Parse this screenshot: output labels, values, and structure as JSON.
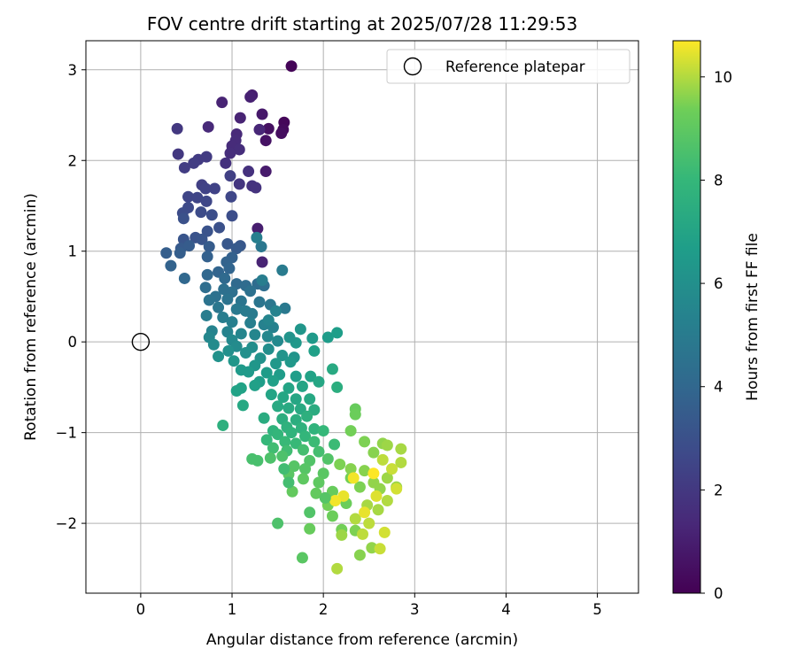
{
  "chart_data": {
    "type": "scatter",
    "title": "FOV centre drift starting at 2025/07/28 11:29:53",
    "xlabel": "Angular distance from reference (arcmin)",
    "ylabel": "Rotation from reference (arcmin)",
    "xlim": [
      -0.6,
      5.45
    ],
    "ylim": [
      -2.77,
      3.32
    ],
    "xticks": [
      0,
      1,
      2,
      3,
      4,
      5
    ],
    "yticks": [
      -2,
      -1,
      0,
      1,
      2,
      3
    ],
    "grid": true,
    "legend": {
      "placement": "top-right",
      "entries": [
        "Reference platepar"
      ]
    },
    "reference_point": {
      "name": "Reference platepar",
      "x": 0,
      "y": 0
    },
    "colorbar": {
      "label": "Hours from first FF file",
      "colormap": "viridis",
      "range": [
        0,
        10.7
      ],
      "ticks": [
        0,
        2,
        4,
        6,
        8,
        10
      ]
    },
    "points": [
      {
        "x": 1.65,
        "y": 3.04,
        "h": 0.1
      },
      {
        "x": 1.57,
        "y": 2.42,
        "h": 0.2
      },
      {
        "x": 1.56,
        "y": 2.34,
        "h": 0.3
      },
      {
        "x": 1.54,
        "y": 2.3,
        "h": 0.4
      },
      {
        "x": 1.4,
        "y": 2.35,
        "h": 0.5
      },
      {
        "x": 1.37,
        "y": 2.22,
        "h": 0.6
      },
      {
        "x": 1.33,
        "y": 2.51,
        "h": 0.8
      },
      {
        "x": 1.37,
        "y": 1.88,
        "h": 0.9
      },
      {
        "x": 1.22,
        "y": 2.72,
        "h": 1.0
      },
      {
        "x": 1.2,
        "y": 2.7,
        "h": 1.1
      },
      {
        "x": 0.89,
        "y": 2.64,
        "h": 1.2
      },
      {
        "x": 1.09,
        "y": 2.47,
        "h": 1.2
      },
      {
        "x": 1.3,
        "y": 2.34,
        "h": 1.3
      },
      {
        "x": 0.74,
        "y": 2.37,
        "h": 1.4
      },
      {
        "x": 1.05,
        "y": 2.29,
        "h": 1.4
      },
      {
        "x": 1.04,
        "y": 2.22,
        "h": 1.5
      },
      {
        "x": 1.0,
        "y": 2.16,
        "h": 1.5
      },
      {
        "x": 1.08,
        "y": 2.12,
        "h": 1.6
      },
      {
        "x": 0.98,
        "y": 2.08,
        "h": 1.6
      },
      {
        "x": 0.93,
        "y": 1.97,
        "h": 1.7
      },
      {
        "x": 1.18,
        "y": 1.88,
        "h": 1.7
      },
      {
        "x": 1.28,
        "y": 1.25,
        "h": 1.0
      },
      {
        "x": 1.33,
        "y": 0.88,
        "h": 1.2
      },
      {
        "x": 1.22,
        "y": 1.72,
        "h": 1.8
      },
      {
        "x": 1.26,
        "y": 1.7,
        "h": 1.8
      },
      {
        "x": 1.08,
        "y": 1.74,
        "h": 1.9
      },
      {
        "x": 0.4,
        "y": 2.35,
        "h": 2.0
      },
      {
        "x": 0.41,
        "y": 2.07,
        "h": 2.0
      },
      {
        "x": 0.72,
        "y": 2.04,
        "h": 2.1
      },
      {
        "x": 0.63,
        "y": 2.01,
        "h": 2.1
      },
      {
        "x": 0.58,
        "y": 1.97,
        "h": 2.2
      },
      {
        "x": 0.48,
        "y": 1.92,
        "h": 2.2
      },
      {
        "x": 0.98,
        "y": 1.83,
        "h": 2.3
      },
      {
        "x": 0.67,
        "y": 1.73,
        "h": 2.3
      },
      {
        "x": 0.71,
        "y": 1.69,
        "h": 2.4
      },
      {
        "x": 0.81,
        "y": 1.69,
        "h": 2.4
      },
      {
        "x": 0.52,
        "y": 1.6,
        "h": 2.5
      },
      {
        "x": 0.62,
        "y": 1.59,
        "h": 2.5
      },
      {
        "x": 0.99,
        "y": 1.6,
        "h": 2.6
      },
      {
        "x": 0.72,
        "y": 1.55,
        "h": 2.6
      },
      {
        "x": 0.52,
        "y": 1.48,
        "h": 2.7
      },
      {
        "x": 0.46,
        "y": 1.42,
        "h": 2.8
      },
      {
        "x": 0.66,
        "y": 1.43,
        "h": 2.8
      },
      {
        "x": 0.78,
        "y": 1.4,
        "h": 2.9
      },
      {
        "x": 1.0,
        "y": 1.39,
        "h": 2.9
      },
      {
        "x": 0.47,
        "y": 1.36,
        "h": 3.0
      },
      {
        "x": 0.86,
        "y": 1.26,
        "h": 3.0
      },
      {
        "x": 0.73,
        "y": 1.22,
        "h": 3.1
      },
      {
        "x": 0.6,
        "y": 1.15,
        "h": 3.1
      },
      {
        "x": 0.47,
        "y": 1.13,
        "h": 3.2
      },
      {
        "x": 0.67,
        "y": 1.13,
        "h": 3.2
      },
      {
        "x": 0.95,
        "y": 1.08,
        "h": 3.3
      },
      {
        "x": 1.09,
        "y": 1.06,
        "h": 3.3
      },
      {
        "x": 1.05,
        "y": 1.03,
        "h": 3.4
      },
      {
        "x": 0.44,
        "y": 1.03,
        "h": 3.4
      },
      {
        "x": 0.53,
        "y": 1.06,
        "h": 3.5
      },
      {
        "x": 0.75,
        "y": 1.05,
        "h": 3.5
      },
      {
        "x": 0.43,
        "y": 0.98,
        "h": 3.6
      },
      {
        "x": 0.28,
        "y": 0.98,
        "h": 3.6
      },
      {
        "x": 0.73,
        "y": 0.94,
        "h": 3.7
      },
      {
        "x": 1.0,
        "y": 0.93,
        "h": 3.7
      },
      {
        "x": 0.94,
        "y": 0.88,
        "h": 3.8
      },
      {
        "x": 0.33,
        "y": 0.84,
        "h": 3.8
      },
      {
        "x": 0.97,
        "y": 0.81,
        "h": 3.9
      },
      {
        "x": 0.85,
        "y": 0.77,
        "h": 3.9
      },
      {
        "x": 0.73,
        "y": 0.74,
        "h": 4.0
      },
      {
        "x": 0.48,
        "y": 0.7,
        "h": 4.0
      },
      {
        "x": 0.92,
        "y": 0.7,
        "h": 4.1
      },
      {
        "x": 1.05,
        "y": 0.64,
        "h": 4.1
      },
      {
        "x": 1.15,
        "y": 0.62,
        "h": 4.2
      },
      {
        "x": 1.28,
        "y": 0.64,
        "h": 4.2
      },
      {
        "x": 1.35,
        "y": 0.62,
        "h": 4.3
      },
      {
        "x": 0.71,
        "y": 0.6,
        "h": 4.3
      },
      {
        "x": 0.91,
        "y": 0.58,
        "h": 4.4
      },
      {
        "x": 1.0,
        "y": 0.55,
        "h": 4.4
      },
      {
        "x": 1.2,
        "y": 0.56,
        "h": 4.5
      },
      {
        "x": 0.82,
        "y": 0.5,
        "h": 4.5
      },
      {
        "x": 0.75,
        "y": 0.46,
        "h": 4.6
      },
      {
        "x": 0.95,
        "y": 0.47,
        "h": 4.6
      },
      {
        "x": 1.1,
        "y": 0.45,
        "h": 4.7
      },
      {
        "x": 1.3,
        "y": 0.44,
        "h": 4.7
      },
      {
        "x": 1.42,
        "y": 0.41,
        "h": 4.8
      },
      {
        "x": 1.58,
        "y": 0.37,
        "h": 4.9
      },
      {
        "x": 0.85,
        "y": 0.38,
        "h": 4.8
      },
      {
        "x": 1.05,
        "y": 0.36,
        "h": 4.9
      },
      {
        "x": 1.15,
        "y": 0.34,
        "h": 5.0
      },
      {
        "x": 1.22,
        "y": 0.31,
        "h": 5.0
      },
      {
        "x": 0.72,
        "y": 0.29,
        "h": 5.1
      },
      {
        "x": 0.9,
        "y": 0.27,
        "h": 5.1
      },
      {
        "x": 1.0,
        "y": 0.22,
        "h": 5.2
      },
      {
        "x": 1.2,
        "y": 0.21,
        "h": 5.2
      },
      {
        "x": 1.35,
        "y": 0.19,
        "h": 5.3
      },
      {
        "x": 1.45,
        "y": 0.16,
        "h": 5.3
      },
      {
        "x": 0.78,
        "y": 0.12,
        "h": 5.4
      },
      {
        "x": 0.95,
        "y": 0.11,
        "h": 5.4
      },
      {
        "x": 1.1,
        "y": 0.09,
        "h": 5.5
      },
      {
        "x": 1.25,
        "y": 0.08,
        "h": 5.5
      },
      {
        "x": 1.39,
        "y": 0.06,
        "h": 5.6
      },
      {
        "x": 0.75,
        "y": 0.05,
        "h": 5.6
      },
      {
        "x": 1.0,
        "y": 0.02,
        "h": 5.7
      },
      {
        "x": 1.5,
        "y": 0.01,
        "h": 5.7
      },
      {
        "x": 0.8,
        "y": -0.03,
        "h": 5.8
      },
      {
        "x": 1.05,
        "y": -0.05,
        "h": 5.8
      },
      {
        "x": 1.22,
        "y": -0.06,
        "h": 5.9
      },
      {
        "x": 1.4,
        "y": -0.08,
        "h": 5.9
      },
      {
        "x": 0.96,
        "y": -0.1,
        "h": 6.0
      },
      {
        "x": 1.15,
        "y": -0.12,
        "h": 6.0
      },
      {
        "x": 0.85,
        "y": -0.16,
        "h": 6.1
      },
      {
        "x": 1.31,
        "y": -0.18,
        "h": 6.1
      },
      {
        "x": 1.55,
        "y": -0.15,
        "h": 6.2
      },
      {
        "x": 1.68,
        "y": -0.17,
        "h": 6.2
      },
      {
        "x": 1.02,
        "y": -0.21,
        "h": 6.3
      },
      {
        "x": 1.25,
        "y": -0.26,
        "h": 6.3
      },
      {
        "x": 1.48,
        "y": -0.24,
        "h": 6.4
      },
      {
        "x": 1.64,
        "y": -0.22,
        "h": 6.4
      },
      {
        "x": 1.1,
        "y": -0.31,
        "h": 6.5
      },
      {
        "x": 1.18,
        "y": -0.33,
        "h": 6.5
      },
      {
        "x": 1.38,
        "y": -0.34,
        "h": 6.6
      },
      {
        "x": 1.52,
        "y": -0.36,
        "h": 6.6
      },
      {
        "x": 1.7,
        "y": -0.38,
        "h": 6.7
      },
      {
        "x": 1.3,
        "y": -0.44,
        "h": 6.7
      },
      {
        "x": 1.45,
        "y": -0.43,
        "h": 6.8
      },
      {
        "x": 1.25,
        "y": -0.48,
        "h": 6.8
      },
      {
        "x": 1.1,
        "y": -0.51,
        "h": 6.9
      },
      {
        "x": 1.05,
        "y": -0.54,
        "h": 6.9
      },
      {
        "x": 1.62,
        "y": -0.51,
        "h": 7.0
      },
      {
        "x": 1.77,
        "y": -0.49,
        "h": 7.0
      },
      {
        "x": 1.43,
        "y": -0.58,
        "h": 7.0
      },
      {
        "x": 1.56,
        "y": -0.61,
        "h": 7.1
      },
      {
        "x": 1.7,
        "y": -0.63,
        "h": 7.1
      },
      {
        "x": 1.85,
        "y": -0.63,
        "h": 7.2
      },
      {
        "x": 1.12,
        "y": -0.7,
        "h": 7.2
      },
      {
        "x": 1.5,
        "y": -0.71,
        "h": 7.3
      },
      {
        "x": 1.62,
        "y": -0.73,
        "h": 7.3
      },
      {
        "x": 1.75,
        "y": -0.74,
        "h": 7.3
      },
      {
        "x": 1.9,
        "y": -0.75,
        "h": 7.4
      },
      {
        "x": 1.35,
        "y": -0.84,
        "h": 7.4
      },
      {
        "x": 1.55,
        "y": -0.85,
        "h": 7.5
      },
      {
        "x": 1.7,
        "y": -0.86,
        "h": 7.5
      },
      {
        "x": 1.82,
        "y": -0.82,
        "h": 7.6
      },
      {
        "x": 0.9,
        "y": -0.92,
        "h": 7.6
      },
      {
        "x": 1.6,
        "y": -0.94,
        "h": 7.7
      },
      {
        "x": 1.76,
        "y": -0.95,
        "h": 7.7
      },
      {
        "x": 1.9,
        "y": -0.96,
        "h": 7.8
      },
      {
        "x": 1.45,
        "y": -0.98,
        "h": 7.8
      },
      {
        "x": 1.65,
        "y": -1.0,
        "h": 7.8
      },
      {
        "x": 1.5,
        "y": -1.02,
        "h": 7.9
      },
      {
        "x": 1.8,
        "y": -1.04,
        "h": 7.9
      },
      {
        "x": 2.0,
        "y": -0.98,
        "h": 8.0
      },
      {
        "x": 1.38,
        "y": -1.08,
        "h": 8.0
      },
      {
        "x": 1.58,
        "y": -1.1,
        "h": 8.1
      },
      {
        "x": 1.7,
        "y": -1.12,
        "h": 8.1
      },
      {
        "x": 1.9,
        "y": -1.1,
        "h": 8.2
      },
      {
        "x": 2.12,
        "y": -1.13,
        "h": 8.2
      },
      {
        "x": 1.45,
        "y": -1.17,
        "h": 8.3
      },
      {
        "x": 1.6,
        "y": -1.2,
        "h": 8.3
      },
      {
        "x": 1.78,
        "y": -1.19,
        "h": 8.4
      },
      {
        "x": 1.95,
        "y": -1.21,
        "h": 8.4
      },
      {
        "x": 1.22,
        "y": -1.29,
        "h": 8.5
      },
      {
        "x": 1.28,
        "y": -1.31,
        "h": 8.5
      },
      {
        "x": 1.42,
        "y": -1.28,
        "h": 8.6
      },
      {
        "x": 1.55,
        "y": -1.26,
        "h": 8.6
      },
      {
        "x": 1.85,
        "y": -1.31,
        "h": 8.7
      },
      {
        "x": 2.05,
        "y": -1.29,
        "h": 8.7
      },
      {
        "x": 1.68,
        "y": -1.37,
        "h": 8.8
      },
      {
        "x": 1.8,
        "y": -1.4,
        "h": 8.8
      },
      {
        "x": 2.0,
        "y": -1.45,
        "h": 8.9
      },
      {
        "x": 1.62,
        "y": -1.46,
        "h": 8.9
      },
      {
        "x": 1.78,
        "y": -1.51,
        "h": 9.0
      },
      {
        "x": 1.95,
        "y": -1.55,
        "h": 9.0
      },
      {
        "x": 1.66,
        "y": -1.65,
        "h": 9.1
      },
      {
        "x": 1.92,
        "y": -1.67,
        "h": 9.1
      },
      {
        "x": 1.5,
        "y": -2.0,
        "h": 8.6
      },
      {
        "x": 1.77,
        "y": -2.38,
        "h": 8.9
      },
      {
        "x": 1.85,
        "y": -2.06,
        "h": 9.2
      },
      {
        "x": 2.1,
        "y": -1.92,
        "h": 9.3
      },
      {
        "x": 2.2,
        "y": -2.07,
        "h": 9.4
      },
      {
        "x": 2.35,
        "y": -2.08,
        "h": 9.5
      },
      {
        "x": 2.4,
        "y": -2.35,
        "h": 9.6
      },
      {
        "x": 2.53,
        "y": -2.27,
        "h": 9.7
      },
      {
        "x": 2.2,
        "y": -2.13,
        "h": 9.8
      },
      {
        "x": 2.15,
        "y": -2.5,
        "h": 10.0
      },
      {
        "x": 2.43,
        "y": -2.12,
        "h": 10.1
      },
      {
        "x": 2.62,
        "y": -2.28,
        "h": 10.2
      },
      {
        "x": 2.67,
        "y": -2.1,
        "h": 10.3
      },
      {
        "x": 2.1,
        "y": -1.65,
        "h": 9.2
      },
      {
        "x": 2.25,
        "y": -1.78,
        "h": 9.3
      },
      {
        "x": 2.05,
        "y": -1.8,
        "h": 9.4
      },
      {
        "x": 2.3,
        "y": -1.5,
        "h": 9.4
      },
      {
        "x": 2.4,
        "y": -1.6,
        "h": 9.5
      },
      {
        "x": 2.18,
        "y": -1.35,
        "h": 9.5
      },
      {
        "x": 2.3,
        "y": -1.4,
        "h": 9.6
      },
      {
        "x": 2.45,
        "y": -1.42,
        "h": 9.6
      },
      {
        "x": 2.55,
        "y": -1.55,
        "h": 9.7
      },
      {
        "x": 2.62,
        "y": -1.62,
        "h": 9.7
      },
      {
        "x": 2.7,
        "y": -1.5,
        "h": 9.8
      },
      {
        "x": 2.8,
        "y": -1.6,
        "h": 9.8
      },
      {
        "x": 2.48,
        "y": -1.8,
        "h": 9.9
      },
      {
        "x": 2.6,
        "y": -1.85,
        "h": 9.9
      },
      {
        "x": 2.7,
        "y": -1.75,
        "h": 10.0
      },
      {
        "x": 2.35,
        "y": -1.95,
        "h": 10.0
      },
      {
        "x": 2.5,
        "y": -2.0,
        "h": 10.1
      },
      {
        "x": 2.35,
        "y": -0.74,
        "h": 9.2
      },
      {
        "x": 2.35,
        "y": -0.8,
        "h": 9.3
      },
      {
        "x": 2.3,
        "y": -0.98,
        "h": 9.4
      },
      {
        "x": 2.45,
        "y": -1.1,
        "h": 9.5
      },
      {
        "x": 2.55,
        "y": -1.22,
        "h": 9.6
      },
      {
        "x": 2.65,
        "y": -1.12,
        "h": 9.7
      },
      {
        "x": 2.7,
        "y": -1.14,
        "h": 9.8
      },
      {
        "x": 2.85,
        "y": -1.18,
        "h": 9.9
      },
      {
        "x": 2.85,
        "y": -1.33,
        "h": 10.0
      },
      {
        "x": 2.65,
        "y": -1.3,
        "h": 10.1
      },
      {
        "x": 2.75,
        "y": -1.4,
        "h": 10.2
      },
      {
        "x": 2.8,
        "y": -1.62,
        "h": 10.3
      },
      {
        "x": 2.58,
        "y": -1.7,
        "h": 10.4
      },
      {
        "x": 2.45,
        "y": -1.88,
        "h": 10.5
      },
      {
        "x": 2.22,
        "y": -1.7,
        "h": 10.5
      },
      {
        "x": 2.13,
        "y": -1.75,
        "h": 10.6
      },
      {
        "x": 2.33,
        "y": -1.5,
        "h": 10.6
      },
      {
        "x": 2.55,
        "y": -1.45,
        "h": 10.7
      },
      {
        "x": 1.62,
        "y": -1.55,
        "h": 8.4
      },
      {
        "x": 1.57,
        "y": -1.4,
        "h": 8.3
      },
      {
        "x": 1.85,
        "y": -1.88,
        "h": 8.7
      },
      {
        "x": 2.02,
        "y": -1.72,
        "h": 8.8
      },
      {
        "x": 1.86,
        "y": -0.38,
        "h": 6.9
      },
      {
        "x": 1.95,
        "y": -0.44,
        "h": 7.1
      },
      {
        "x": 2.15,
        "y": -0.5,
        "h": 7.5
      },
      {
        "x": 2.1,
        "y": -0.3,
        "h": 7.3
      },
      {
        "x": 1.88,
        "y": 0.04,
        "h": 6.5
      },
      {
        "x": 2.05,
        "y": 0.05,
        "h": 6.6
      },
      {
        "x": 2.15,
        "y": 0.1,
        "h": 6.7
      },
      {
        "x": 1.9,
        "y": -0.1,
        "h": 6.8
      },
      {
        "x": 1.75,
        "y": 0.14,
        "h": 6.3
      },
      {
        "x": 1.7,
        "y": -0.01,
        "h": 6.4
      },
      {
        "x": 1.63,
        "y": 0.05,
        "h": 6.2
      },
      {
        "x": 1.55,
        "y": 0.79,
        "h": 5.0
      },
      {
        "x": 1.32,
        "y": 1.05,
        "h": 4.8
      },
      {
        "x": 1.27,
        "y": 1.15,
        "h": 5.2
      },
      {
        "x": 1.33,
        "y": 0.68,
        "h": 5.1
      },
      {
        "x": 1.48,
        "y": 0.34,
        "h": 5.4
      },
      {
        "x": 1.4,
        "y": 0.24,
        "h": 5.5
      }
    ]
  }
}
